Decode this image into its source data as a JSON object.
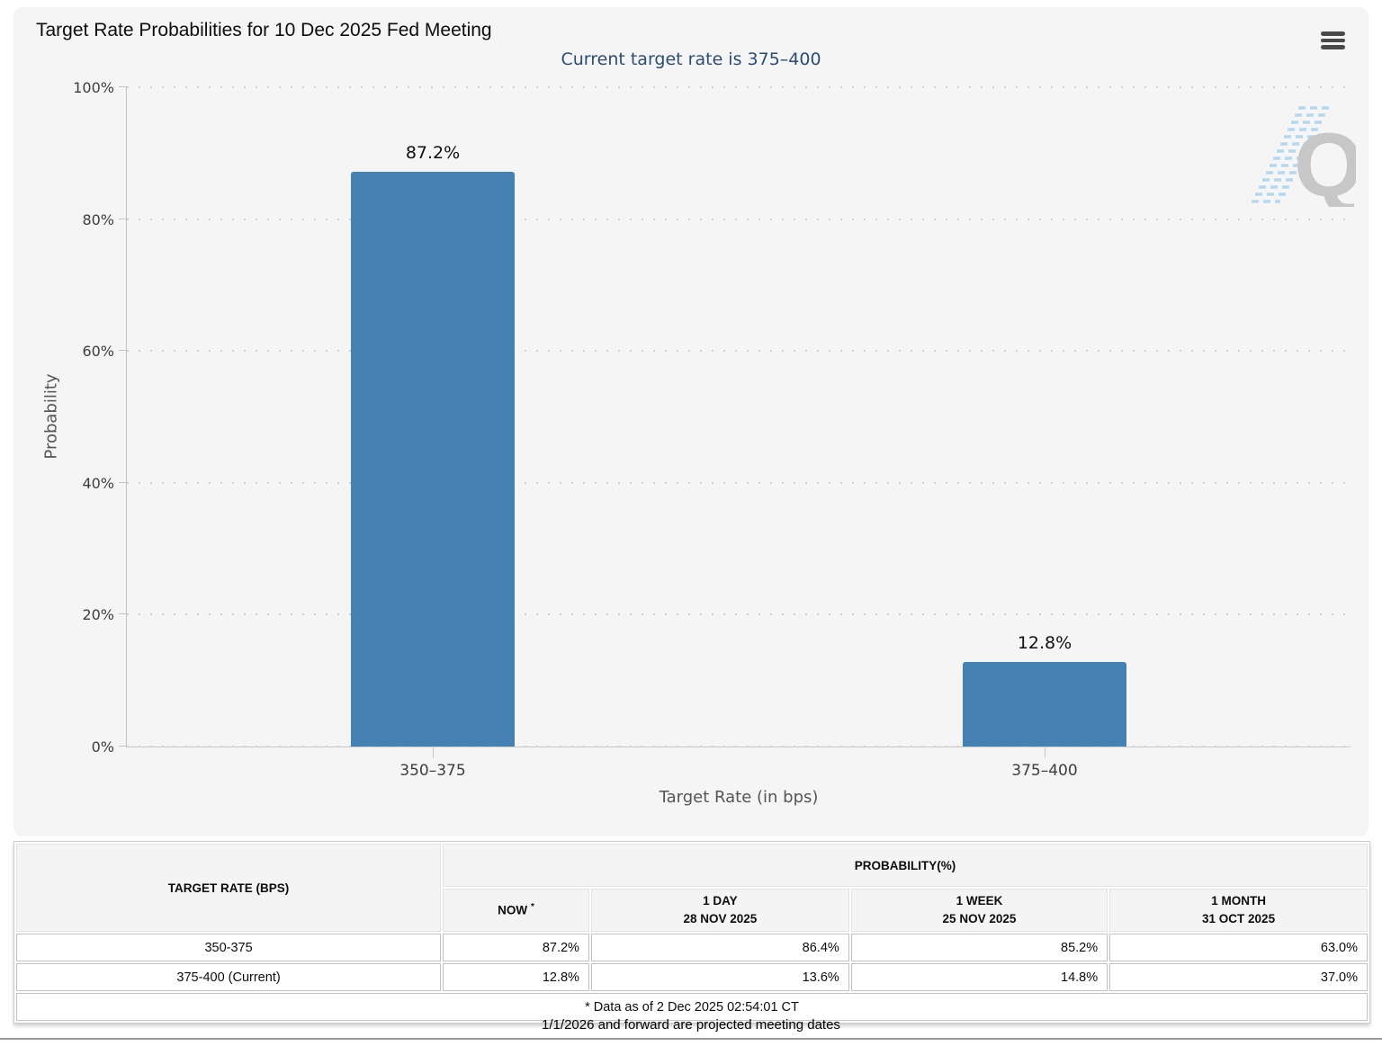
{
  "header": {
    "title": "Target Rate Probabilities for 10 Dec 2025 Fed Meeting",
    "menu_icon": "hamburger-menu-icon"
  },
  "chart_data": {
    "type": "bar",
    "title": "Target Rate Probabilities for 10 Dec 2025 Fed Meeting",
    "subtitle": "Current target rate is 375–400",
    "categories": [
      "350–375",
      "375–400"
    ],
    "values": [
      87.2,
      12.8
    ],
    "value_labels": [
      "87.2%",
      "12.8%"
    ],
    "xlabel": "Target Rate (in bps)",
    "ylabel": "Probability",
    "ylim": [
      0,
      100
    ],
    "y_ticks": [
      "0%",
      "20%",
      "40%",
      "60%",
      "80%",
      "100%"
    ],
    "grid": "dotted horizontal gridlines at each 20%",
    "legend": "none",
    "bar_color": "#4681b4",
    "watermark_letter": "Q"
  },
  "table": {
    "rate_header": "TARGET RATE (BPS)",
    "group_header": "PROBABILITY(%)",
    "now_label": "NOW",
    "now_sup": "*",
    "subheaders": [
      {
        "line1": "1 DAY",
        "line2": "28 NOV 2025"
      },
      {
        "line1": "1 WEEK",
        "line2": "25 NOV 2025"
      },
      {
        "line1": "1 MONTH",
        "line2": "31 OCT 2025"
      }
    ],
    "rows": [
      {
        "rate": "350-375",
        "now": "87.2%",
        "day": "86.4%",
        "week": "85.2%",
        "month": "63.0%"
      },
      {
        "rate": "375-400 (Current)",
        "now": "12.8%",
        "day": "13.6%",
        "week": "14.8%",
        "month": "37.0%"
      }
    ],
    "footnote": "* Data as of 2 Dec 2025 02:54:01 CT"
  },
  "bottom_note": "1/1/2026 and forward are projected meeting dates"
}
